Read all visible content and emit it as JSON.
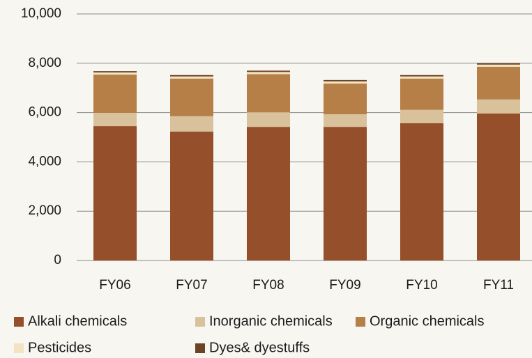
{
  "chart_data": {
    "type": "stacked_bar",
    "categories": [
      "FY06",
      "FY07",
      "FY08",
      "FY09",
      "FY10",
      "FY11"
    ],
    "series": [
      {
        "name": "Alkali chemicals",
        "color": "#954f2a",
        "values": [
          5450,
          5230,
          5420,
          5420,
          5570,
          5960
        ]
      },
      {
        "name": "Inorganic chemicals",
        "color": "#d9c29b",
        "values": [
          540,
          620,
          590,
          510,
          540,
          570
        ]
      },
      {
        "name": "Organic chemicals",
        "color": "#b57f47",
        "values": [
          1550,
          1530,
          1550,
          1250,
          1270,
          1330
        ]
      },
      {
        "name": "Pesticides",
        "color": "#f3e3c3",
        "values": [
          85,
          85,
          85,
          85,
          85,
          85
        ]
      },
      {
        "name": "Dyes& dyestuffs",
        "color": "#6b4423",
        "values": [
          55,
          55,
          55,
          55,
          55,
          55
        ]
      }
    ],
    "ylim": [
      0,
      10000
    ],
    "yticks": [
      {
        "value": 0,
        "label": "0"
      },
      {
        "value": 2000,
        "label": "2,000"
      },
      {
        "value": 4000,
        "label": "4,000"
      },
      {
        "value": 6000,
        "label": "6,000"
      },
      {
        "value": 8000,
        "label": "8,000"
      },
      {
        "value": 10000,
        "label": "10,000"
      }
    ],
    "grid": true
  }
}
